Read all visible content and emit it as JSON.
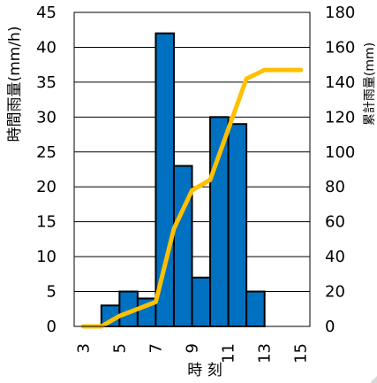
{
  "chart_data": {
    "type": "bar+line",
    "x_ticks": [
      "3",
      "5",
      "7",
      "9",
      "11",
      "13",
      "15"
    ],
    "xlabel": "時 刻",
    "y_left": {
      "label": "時間雨量(mm/h)",
      "range": [
        0,
        45
      ],
      "ticks": [
        "0",
        "5",
        "10",
        "15",
        "20",
        "25",
        "30",
        "35",
        "40",
        "45"
      ]
    },
    "y_right": {
      "label": "累計雨量(mm)",
      "range": [
        0,
        180
      ],
      "ticks": [
        "0",
        "20",
        "40",
        "60",
        "80",
        "100",
        "120",
        "140",
        "160",
        "180"
      ]
    },
    "grid": true,
    "bars": {
      "name": "時間雨量",
      "axis": "left",
      "color": "#0070c0",
      "x": [
        4.5,
        5.5,
        6.5,
        7.5,
        8.5,
        9.5,
        10.5,
        11.5,
        12.5
      ],
      "values": [
        3,
        5,
        4,
        42,
        23,
        7,
        30,
        29,
        5
      ]
    },
    "line": {
      "name": "累計雨量",
      "axis": "right",
      "color": "#ffc000",
      "x": [
        3,
        4,
        5,
        6,
        7,
        8,
        9,
        10,
        11,
        12,
        13,
        14,
        15
      ],
      "values": [
        0,
        0,
        6,
        10,
        14,
        56,
        78,
        84,
        113,
        142,
        147,
        147,
        147
      ]
    }
  }
}
